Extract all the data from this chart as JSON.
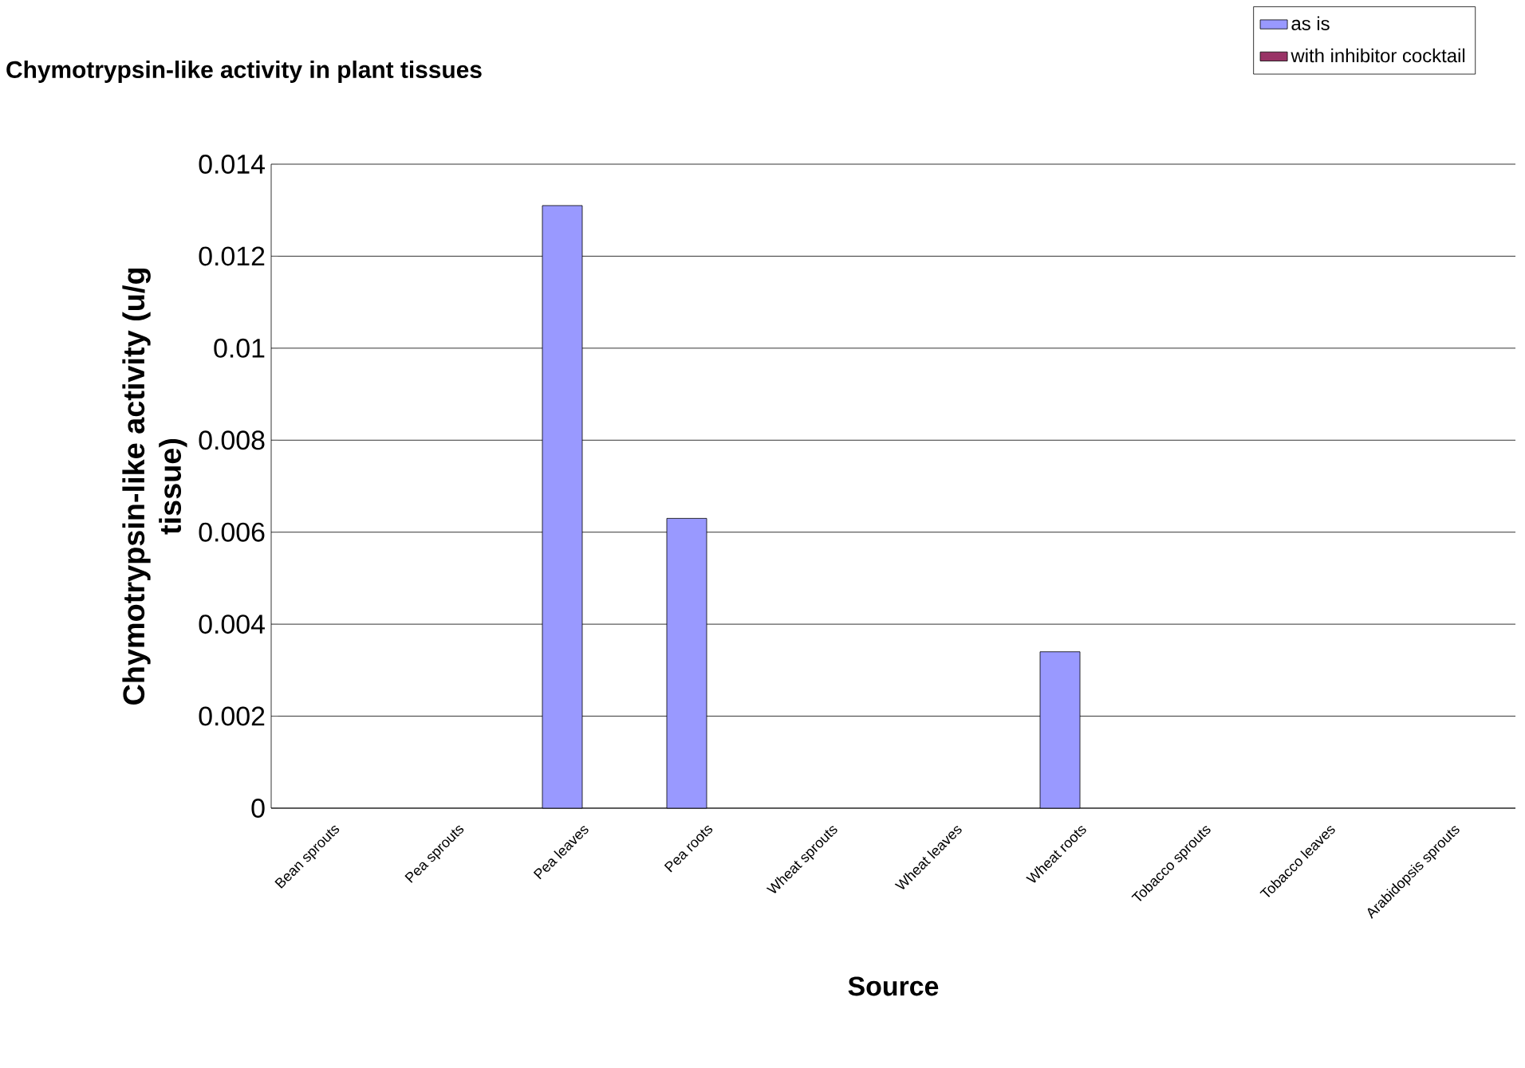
{
  "chart_data": {
    "type": "bar",
    "title": "Chymotrypsin-like activity in plant tissues",
    "xlabel": "Source",
    "ylabel": "Chymotrypsin-like activity (u/g tissue)",
    "categories": [
      "Bean sprouts",
      "Pea sprouts",
      "Pea leaves",
      "Pea roots",
      "Wheat sprouts",
      "Wheat leaves",
      "Wheat roots",
      "Tobacco sprouts",
      "Tobacco leaves",
      "Arabidopsis sprouts"
    ],
    "series": [
      {
        "name": "as is",
        "color": "#9999ff",
        "values": [
          null,
          null,
          0.0131,
          0.0063,
          null,
          null,
          0.0034,
          null,
          null,
          null
        ]
      },
      {
        "name": "with inhibitor cocktail",
        "color": "#993366",
        "values": [
          null,
          null,
          null,
          null,
          null,
          null,
          null,
          null,
          null,
          null
        ]
      }
    ],
    "ylim": [
      0,
      0.014
    ],
    "yticks": [
      0,
      0.002,
      0.004,
      0.006,
      0.008,
      0.01,
      0.012,
      0.014
    ],
    "grid": "y",
    "legend": "top right"
  }
}
